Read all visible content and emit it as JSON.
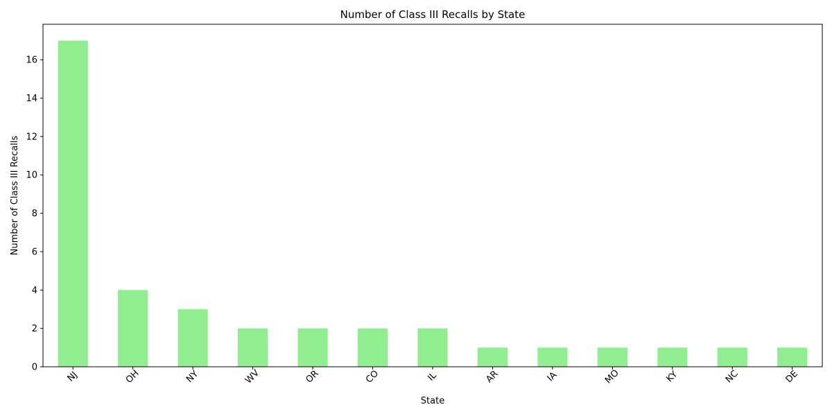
{
  "chart_data": {
    "type": "bar",
    "title": "Number of Class III Recalls by State",
    "xlabel": "State",
    "ylabel": "Number of Class III Recalls",
    "categories": [
      "NJ",
      "OH",
      "NY",
      "WV",
      "OR",
      "CO",
      "IL",
      "AR",
      "IA",
      "MO",
      "KY",
      "NC",
      "DE"
    ],
    "values": [
      17,
      4,
      3,
      2,
      2,
      2,
      2,
      1,
      1,
      1,
      1,
      1,
      1
    ],
    "ylim": [
      0,
      17.85
    ],
    "yticks": [
      0,
      2,
      4,
      6,
      8,
      10,
      12,
      14,
      16
    ],
    "bar_color": "#90ee90",
    "grid": false,
    "legend": "none"
  }
}
